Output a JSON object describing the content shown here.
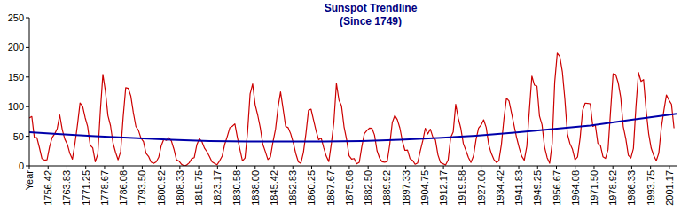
{
  "chart_data": {
    "type": "line",
    "title": "Sunspot Trendline",
    "subtitle": "(Since 1749)",
    "xlim": [
      1749,
      2004
    ],
    "ylim": [
      0,
      250
    ],
    "yticks": [
      0,
      50,
      100,
      150,
      200,
      250
    ],
    "grid": false,
    "xticks": [
      {
        "value": 1749,
        "label": "Year"
      },
      1756.42,
      1763.83,
      1771.25,
      1778.67,
      1786.08,
      {
        "value": 1793.5,
        "label": "1793.50"
      },
      1800.92,
      1808.33,
      1815.75,
      1823.17,
      1830.58,
      {
        "value": 1838,
        "label": "1838.00"
      },
      1845.42,
      1852.83,
      1860.25,
      1867.67,
      1875.08,
      {
        "value": 1882.5,
        "label": "1882.50"
      },
      1889.92,
      1897.33,
      1904.75,
      1912.17,
      1919.58,
      {
        "value": 1927,
        "label": "1927.00"
      },
      1934.42,
      1941.83,
      1949.25,
      1956.67,
      1964.08,
      {
        "value": 1971.5,
        "label": "1971.50"
      },
      1978.92,
      1986.33,
      1993.75,
      2001.17
    ],
    "series": [
      {
        "color": "#cc0000",
        "x": [
          1749,
          1750,
          1751,
          1752,
          1753,
          1754,
          1755,
          1756,
          1757,
          1758,
          1759,
          1760,
          1761,
          1762,
          1763,
          1764,
          1765,
          1766,
          1767,
          1768,
          1769,
          1770,
          1771,
          1772,
          1773,
          1774,
          1775,
          1776,
          1777,
          1778,
          1779,
          1780,
          1781,
          1782,
          1783,
          1784,
          1785,
          1786,
          1787,
          1788,
          1789,
          1790,
          1791,
          1792,
          1793,
          1794,
          1795,
          1796,
          1797,
          1798,
          1799,
          1800,
          1801,
          1802,
          1803,
          1804,
          1805,
          1806,
          1807,
          1808,
          1809,
          1810,
          1811,
          1812,
          1813,
          1814,
          1815,
          1816,
          1817,
          1818,
          1819,
          1820,
          1821,
          1822,
          1823,
          1824,
          1825,
          1826,
          1827,
          1828,
          1829,
          1830,
          1831,
          1832,
          1833,
          1834,
          1835,
          1836,
          1837,
          1838,
          1839,
          1840,
          1841,
          1842,
          1843,
          1844,
          1845,
          1846,
          1847,
          1848,
          1849,
          1850,
          1851,
          1852,
          1853,
          1854,
          1855,
          1856,
          1857,
          1858,
          1859,
          1860,
          1861,
          1862,
          1863,
          1864,
          1865,
          1866,
          1867,
          1868,
          1869,
          1870,
          1871,
          1872,
          1873,
          1874,
          1875,
          1876,
          1877,
          1878,
          1879,
          1880,
          1881,
          1882,
          1883,
          1884,
          1885,
          1886,
          1887,
          1888,
          1889,
          1890,
          1891,
          1892,
          1893,
          1894,
          1895,
          1896,
          1897,
          1898,
          1899,
          1900,
          1901,
          1902,
          1903,
          1904,
          1905,
          1906,
          1907,
          1908,
          1909,
          1910,
          1911,
          1912,
          1913,
          1914,
          1915,
          1916,
          1917,
          1918,
          1919,
          1920,
          1921,
          1922,
          1923,
          1924,
          1925,
          1926,
          1927,
          1928,
          1929,
          1930,
          1931,
          1932,
          1933,
          1934,
          1935,
          1936,
          1937,
          1938,
          1939,
          1940,
          1941,
          1942,
          1943,
          1944,
          1945,
          1946,
          1947,
          1948,
          1949,
          1950,
          1951,
          1952,
          1953,
          1954,
          1955,
          1956,
          1957,
          1958,
          1959,
          1960,
          1961,
          1962,
          1963,
          1964,
          1965,
          1966,
          1967,
          1968,
          1969,
          1970,
          1971,
          1972,
          1973,
          1974,
          1975,
          1976,
          1977,
          1978,
          1979,
          1980,
          1981,
          1982,
          1983,
          1984,
          1985,
          1986,
          1987,
          1988,
          1989,
          1990,
          1991,
          1992,
          1993,
          1994,
          1995,
          1996,
          1997,
          1998,
          1999,
          2000,
          2001,
          2002,
          2003
        ],
        "values": [
          80.9,
          83.4,
          47.7,
          47.8,
          30.7,
          12.2,
          9.6,
          10.2,
          32.4,
          47.6,
          54.0,
          62.9,
          85.9,
          61.2,
          45.1,
          36.4,
          20.9,
          11.4,
          37.8,
          69.8,
          106.1,
          100.8,
          81.6,
          66.5,
          34.8,
          30.6,
          7.0,
          19.8,
          92.5,
          154.4,
          125.9,
          84.8,
          68.1,
          38.5,
          22.8,
          10.2,
          24.1,
          82.9,
          132.0,
          130.9,
          118.1,
          89.9,
          66.6,
          60.0,
          46.9,
          41.0,
          21.3,
          16.0,
          6.4,
          4.1,
          6.8,
          14.5,
          34.0,
          45.0,
          43.1,
          47.5,
          42.2,
          28.1,
          10.1,
          8.1,
          2.5,
          0.0,
          1.4,
          5.0,
          12.2,
          13.9,
          35.4,
          45.8,
          41.1,
          30.1,
          23.9,
          15.6,
          6.6,
          4.0,
          1.8,
          8.5,
          16.6,
          36.3,
          49.6,
          64.2,
          67.0,
          70.9,
          47.8,
          27.5,
          8.5,
          13.2,
          56.9,
          121.5,
          138.3,
          103.2,
          85.7,
          64.6,
          36.7,
          24.2,
          10.7,
          15.0,
          40.1,
          61.5,
          98.5,
          124.7,
          96.3,
          66.6,
          64.5,
          54.1,
          39.0,
          20.6,
          6.7,
          4.3,
          22.7,
          54.8,
          93.8,
          95.8,
          77.2,
          59.1,
          44.0,
          47.0,
          30.5,
          16.3,
          7.3,
          37.6,
          74.0,
          139.0,
          111.2,
          101.6,
          66.2,
          44.7,
          17.0,
          11.3,
          12.4,
          3.4,
          6.0,
          32.3,
          54.3,
          59.7,
          63.7,
          63.5,
          52.2,
          25.4,
          13.1,
          6.8,
          6.3,
          7.1,
          35.6,
          73.0,
          85.1,
          78.0,
          64.0,
          41.8,
          26.2,
          26.7,
          12.1,
          9.5,
          2.7,
          5.0,
          24.4,
          42.0,
          63.5,
          53.8,
          62.0,
          48.5,
          43.9,
          18.6,
          5.7,
          3.6,
          1.4,
          9.6,
          47.4,
          57.1,
          103.9,
          80.6,
          63.6,
          37.6,
          26.1,
          14.2,
          5.8,
          16.7,
          44.3,
          63.9,
          69.0,
          77.8,
          64.9,
          35.7,
          21.2,
          11.1,
          5.7,
          8.7,
          36.1,
          79.7,
          114.4,
          109.6,
          88.8,
          67.8,
          47.5,
          30.6,
          16.3,
          9.6,
          33.2,
          92.6,
          151.6,
          136.3,
          134.7,
          83.9,
          69.4,
          31.5,
          13.9,
          4.4,
          38.0,
          141.7,
          190.2,
          184.8,
          159.0,
          112.3,
          53.9,
          37.6,
          27.9,
          10.2,
          15.1,
          47.0,
          93.8,
          105.9,
          105.5,
          104.5,
          66.6,
          68.9,
          38.0,
          34.5,
          15.5,
          12.6,
          27.5,
          92.5,
          155.4,
          154.6,
          140.4,
          115.9,
          66.6,
          45.9,
          17.9,
          13.4,
          29.4,
          100.2,
          157.6,
          142.6,
          145.7,
          94.3,
          54.6,
          29.9,
          17.5,
          8.6,
          21.5,
          64.3,
          93.3,
          119.6,
          111.0,
          104.0,
          63.7
        ]
      },
      {
        "color": "#0000aa",
        "x": [
          1749,
          1760,
          1775,
          1790,
          1805,
          1820,
          1835,
          1850,
          1865,
          1880,
          1895,
          1910,
          1925,
          1940,
          1955,
          1970,
          1985,
          2004
        ],
        "values": [
          57,
          54,
          50,
          47,
          44,
          42,
          41,
          41,
          41,
          42,
          44,
          47,
          51,
          56,
          62,
          68,
          77,
          88
        ]
      }
    ]
  }
}
